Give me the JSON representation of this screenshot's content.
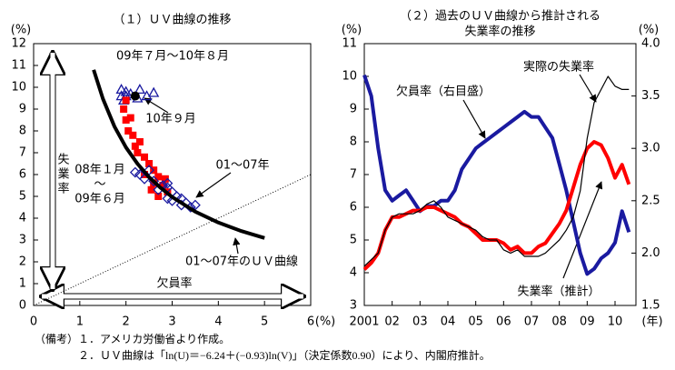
{
  "chart_data": [
    {
      "type": "scatter",
      "title": "（１）ＵＶ曲線の推移",
      "x_unit": "(%)",
      "y_unit": "(%)",
      "x_label": "欠員率",
      "y_label": "失業率",
      "xlim": [
        0,
        6
      ],
      "ylim": [
        0,
        12
      ],
      "xticks": [
        0,
        1,
        2,
        3,
        4,
        5,
        6
      ],
      "yticks": [
        0,
        1,
        2,
        3,
        4,
        5,
        6,
        7,
        8,
        9,
        10,
        11,
        12
      ],
      "diagonal": true,
      "annotations": [
        "08年１月",
        "～",
        "09年６月"
      ],
      "series": [
        {
          "name": "09年７月～10年８月",
          "color": "#1a1aa0",
          "marker": "triangle",
          "x": [
            1.9,
            2.0,
            1.95,
            2.1,
            2.3,
            2.45,
            2.6,
            2.0,
            2.25,
            1.9
          ],
          "values": [
            9.6,
            9.8,
            9.4,
            9.7,
            9.9,
            9.6,
            9.75,
            9.6,
            9.5,
            9.9
          ]
        },
        {
          "name": "10年９月",
          "color": "#000000",
          "marker": "dot",
          "x": [
            2.2
          ],
          "values": [
            9.6
          ]
        },
        {
          "color": "#ff0000",
          "marker": "square",
          "x": [
            2.0,
            1.95,
            2.0,
            2.05,
            2.15,
            2.3,
            2.25,
            2.4,
            2.5,
            2.6,
            2.7,
            2.6,
            2.8,
            2.9,
            2.7,
            2.85,
            2.2,
            2.4,
            2.55,
            2.1
          ],
          "values": [
            9.4,
            9.0,
            8.5,
            8.0,
            7.8,
            7.5,
            7.0,
            6.8,
            6.5,
            6.2,
            5.9,
            5.6,
            5.5,
            5.2,
            5.0,
            5.8,
            7.3,
            6.0,
            5.3,
            8.6
          ]
        },
        {
          "name": "01～07年",
          "color": "#1a1aa0",
          "marker": "diamond",
          "x": [
            2.3,
            2.4,
            2.5,
            2.6,
            2.8,
            2.9,
            3.0,
            3.1,
            3.2,
            3.3,
            3.4,
            3.2,
            3.0,
            2.7,
            2.9,
            3.5,
            2.2,
            2.9
          ],
          "values": [
            6.0,
            5.8,
            6.2,
            5.7,
            5.5,
            5.4,
            5.2,
            5.0,
            4.9,
            4.7,
            4.5,
            4.6,
            4.8,
            5.3,
            4.9,
            4.6,
            6.1,
            5.6
          ]
        },
        {
          "name": "01～07年のＵＶ曲線",
          "color": "#000000",
          "marker": "line",
          "x": [
            1.3,
            1.5,
            1.75,
            2,
            2.25,
            2.5,
            2.75,
            3,
            3.5,
            4,
            4.5,
            5
          ],
          "values": [
            10.8,
            9.47,
            8.2,
            7.24,
            6.49,
            5.88,
            5.39,
            4.97,
            4.3,
            3.8,
            3.41,
            3.09
          ]
        }
      ]
    },
    {
      "type": "line",
      "title": [
        "（２）過去のＵＶ曲線から推計される",
        "失業率の推移"
      ],
      "x_unit": "(年)",
      "y_unit": "(%)",
      "y2_unit": "(%)",
      "xlim": [
        2001,
        2010.75
      ],
      "xticks": [
        2001,
        {
          "value": 2002,
          "label": "02"
        },
        {
          "value": 2003,
          "label": "03"
        },
        {
          "value": 2004,
          "label": "04"
        },
        {
          "value": 2005,
          "label": "05"
        },
        {
          "value": 2006,
          "label": "06"
        },
        {
          "value": 2007,
          "label": "07"
        },
        {
          "value": 2008,
          "label": "08"
        },
        {
          "value": 2009,
          "label": "09"
        },
        {
          "value": 2010,
          "label": "10"
        }
      ],
      "ylim": [
        3,
        11
      ],
      "yticks": [
        3,
        4,
        5,
        6,
        7,
        8,
        9,
        10,
        11
      ],
      "y2lim": [
        1.5,
        4.0
      ],
      "y2ticks": [
        1.5,
        {
          "value": 2,
          "label": "2.0"
        },
        2.5,
        {
          "value": 3,
          "label": "3.0"
        },
        3.5,
        {
          "value": 4,
          "label": "4.0"
        }
      ],
      "x": [
        2001,
        2001.25,
        2001.5,
        2001.75,
        2002,
        2002.25,
        2002.5,
        2002.75,
        2003,
        2003.25,
        2003.5,
        2003.75,
        2004,
        2004.25,
        2004.5,
        2004.75,
        2005,
        2005.25,
        2005.5,
        2005.75,
        2006,
        2006.25,
        2006.5,
        2006.75,
        2007,
        2007.25,
        2007.5,
        2007.75,
        2008,
        2008.25,
        2008.5,
        2008.75,
        2009,
        2009.25,
        2009.5,
        2009.75,
        2010,
        2010.25,
        2010.5
      ],
      "series": [
        {
          "name": "欠員率（右目盛）",
          "color": "#1a1aa0",
          "width": 4,
          "axis": "y2",
          "values": [
            3.7,
            3.5,
            3.0,
            2.6,
            2.5,
            2.55,
            2.6,
            2.5,
            2.4,
            2.45,
            2.45,
            2.5,
            2.5,
            2.6,
            2.8,
            2.9,
            3.0,
            3.05,
            3.1,
            3.15,
            3.2,
            3.25,
            3.3,
            3.35,
            3.3,
            3.3,
            3.2,
            3.1,
            2.85,
            2.6,
            2.3,
            2.0,
            1.8,
            1.85,
            1.95,
            2.0,
            2.1,
            2.4,
            2.2
          ]
        },
        {
          "name": "失業率（推計）",
          "color": "#ff0000",
          "width": 4,
          "values": [
            4.1,
            4.3,
            4.6,
            5.3,
            5.7,
            5.7,
            5.8,
            5.9,
            5.9,
            6.0,
            6.0,
            5.9,
            5.8,
            5.7,
            5.5,
            5.4,
            5.2,
            5.0,
            5.0,
            5.0,
            4.9,
            4.7,
            4.8,
            4.6,
            4.6,
            4.8,
            4.9,
            5.2,
            5.5,
            5.9,
            6.6,
            7.3,
            7.8,
            8.0,
            7.9,
            7.5,
            6.9,
            7.3,
            6.7
          ]
        },
        {
          "name": "実際の失業率",
          "color": "#000000",
          "width": 1.2,
          "values": [
            4.2,
            4.4,
            4.6,
            5.3,
            5.7,
            5.8,
            5.8,
            5.8,
            5.9,
            6.1,
            6.2,
            6.0,
            5.7,
            5.6,
            5.5,
            5.4,
            5.3,
            5.1,
            5.0,
            5.0,
            4.7,
            4.6,
            4.7,
            4.5,
            4.5,
            4.5,
            4.6,
            4.8,
            5.0,
            5.3,
            5.7,
            6.5,
            8.1,
            9.2,
            9.6,
            10.0,
            9.7,
            9.6,
            9.6
          ]
        }
      ]
    }
  ],
  "notes": [
    "（備考）",
    "１．アメリカ労働省より作成。",
    "２．ＵＶ曲線は「ln(U)＝−6.24＋(−0.93)ln(V)」（決定係数0.90）により、内閣府推計。"
  ]
}
